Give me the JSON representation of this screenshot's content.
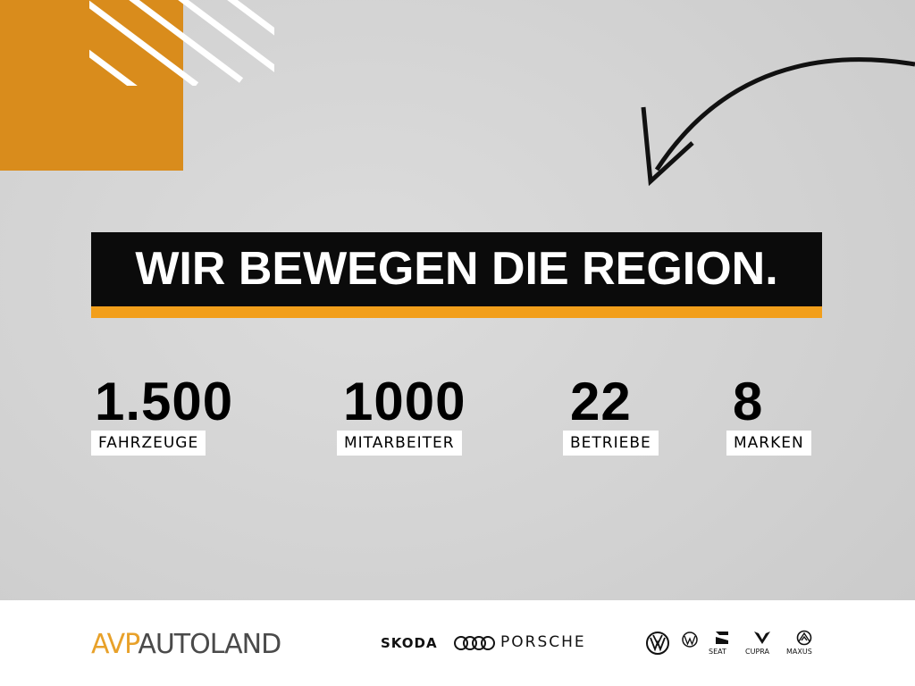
{
  "headline": "WIR BEWEGEN DIE REGION.",
  "colors": {
    "accent_orange": "#d98c1c",
    "bar_orange": "#f29f1b",
    "headline_bg": "#0b0b0b"
  },
  "stats": [
    {
      "value": "1.500",
      "label": "FAHRZEUGE"
    },
    {
      "value": "1000",
      "label": "MITARBEITER"
    },
    {
      "value": "22",
      "label": "BETRIEBE"
    },
    {
      "value": "8",
      "label": "MARKEN"
    }
  ],
  "footer": {
    "brand_prefix": "AVP",
    "brand_name": "AUTOLAND",
    "logos": [
      "SKODA",
      "Audi",
      "PORSCHE",
      "Volkswagen",
      "Volkswagen Nutzfahrzeuge",
      "SEAT",
      "CUPRA",
      "MAXUS"
    ],
    "logo_texts": {
      "skoda": "SKODA",
      "porsche": "PORSCHE",
      "seat": "SEAT",
      "cupra": "CUPRA",
      "maxus": "MAXUS"
    }
  }
}
